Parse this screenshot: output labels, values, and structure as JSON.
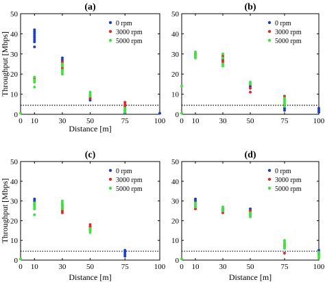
{
  "chart_data": [
    {
      "type": "scatter",
      "title": "(a)",
      "xlabel": "Distance [m]",
      "ylabel": "Throughput [Mbps]",
      "xlim": [
        0,
        100
      ],
      "ylim": [
        0,
        50
      ],
      "xticks": [
        "0",
        "10",
        "30",
        "50",
        "75",
        "100"
      ],
      "yticks": [
        "0",
        "10",
        "20",
        "30",
        "40",
        "50"
      ],
      "legend": {
        "position": "top-right",
        "entries": [
          "0 rpm",
          "3000 rpm",
          "5000 rpm"
        ]
      },
      "threshold": 4.5,
      "series": [
        {
          "name": "0 rpm",
          "color": "#1f3fbf",
          "points": [
            [
              10,
              33.5
            ],
            [
              10,
              36
            ],
            [
              10,
              37
            ],
            [
              10,
              38
            ],
            [
              10,
              39
            ],
            [
              10,
              40
            ],
            [
              10,
              41
            ],
            [
              10,
              42
            ],
            [
              30,
              26
            ],
            [
              30,
              27
            ],
            [
              30,
              28
            ],
            [
              50,
              7
            ],
            [
              50,
              8
            ],
            [
              75,
              0.5
            ],
            [
              75,
              1
            ],
            [
              75,
              2
            ],
            [
              100,
              0.5
            ]
          ]
        },
        {
          "name": "3000 rpm",
          "color": "#e02a2a",
          "points": [
            [
              10,
              17
            ],
            [
              10,
              18
            ],
            [
              30,
              22
            ],
            [
              30,
              23
            ],
            [
              30,
              24
            ],
            [
              30,
              25
            ],
            [
              30,
              26
            ],
            [
              50,
              8
            ],
            [
              50,
              9
            ],
            [
              50,
              10
            ],
            [
              75,
              2
            ],
            [
              75,
              3
            ],
            [
              75,
              4
            ],
            [
              75,
              5
            ],
            [
              75,
              6
            ]
          ]
        },
        {
          "name": "5000 rpm",
          "color": "#3fe23f",
          "points": [
            [
              0,
              0.5
            ],
            [
              10,
              13.5
            ],
            [
              10,
              16
            ],
            [
              10,
              17
            ],
            [
              10,
              18.5
            ],
            [
              30,
              20
            ],
            [
              30,
              21
            ],
            [
              30,
              22
            ],
            [
              30,
              24
            ],
            [
              30,
              25
            ],
            [
              50,
              9
            ],
            [
              50,
              10
            ],
            [
              50,
              11
            ],
            [
              75,
              1
            ],
            [
              75,
              2
            ],
            [
              75,
              3
            ]
          ]
        }
      ]
    },
    {
      "type": "scatter",
      "title": "(b)",
      "xlabel": "",
      "ylabel": "",
      "xlim": [
        0,
        100
      ],
      "ylim": [
        0,
        50
      ],
      "xticks": [
        "0",
        "10",
        "30",
        "50",
        "75",
        "100"
      ],
      "yticks": [
        "0",
        "10",
        "20",
        "30",
        "40",
        "50"
      ],
      "legend": {
        "position": "top-right",
        "entries": [
          "0 rpm",
          "3000 rpm",
          "5000 rpm"
        ]
      },
      "threshold": 4.5,
      "series": [
        {
          "name": "0 rpm",
          "color": "#1f3fbf",
          "points": [
            [
              10,
              30
            ],
            [
              30,
              27
            ],
            [
              30,
              28
            ],
            [
              50,
              13
            ],
            [
              50,
              14
            ],
            [
              75,
              2
            ],
            [
              75,
              3
            ],
            [
              100,
              1
            ],
            [
              100,
              2
            ],
            [
              100,
              3
            ]
          ]
        },
        {
          "name": "3000 rpm",
          "color": "#e02a2a",
          "points": [
            [
              10,
              29
            ],
            [
              10,
              30
            ],
            [
              30,
              26
            ],
            [
              30,
              27
            ],
            [
              30,
              29
            ],
            [
              50,
              11
            ],
            [
              50,
              13
            ],
            [
              50,
              15
            ],
            [
              75,
              8
            ],
            [
              75,
              9
            ]
          ]
        },
        {
          "name": "5000 rpm",
          "color": "#3fe23f",
          "points": [
            [
              0,
              14
            ],
            [
              0,
              0.5
            ],
            [
              10,
              28
            ],
            [
              10,
              29
            ],
            [
              10,
              30
            ],
            [
              10,
              31
            ],
            [
              30,
              24
            ],
            [
              30,
              25
            ],
            [
              30,
              28
            ],
            [
              30,
              30
            ],
            [
              50,
              15
            ],
            [
              50,
              16
            ],
            [
              75,
              4
            ],
            [
              75,
              5
            ],
            [
              75,
              6
            ],
            [
              75,
              7
            ],
            [
              75,
              8
            ]
          ]
        }
      ]
    },
    {
      "type": "scatter",
      "title": "(c)",
      "xlabel": "Distance [m]",
      "ylabel": "Throughput [Mbps]",
      "xlim": [
        0,
        100
      ],
      "ylim": [
        0,
        50
      ],
      "xticks": [
        "0",
        "10",
        "30",
        "50",
        "75",
        "100"
      ],
      "yticks": [
        "0",
        "10",
        "20",
        "30",
        "40",
        "50"
      ],
      "legend": {
        "position": "top-right",
        "entries": [
          "0 rpm",
          "3000 rpm",
          "5000 rpm"
        ]
      },
      "threshold": 4.5,
      "series": [
        {
          "name": "0 rpm",
          "color": "#1f3fbf",
          "points": [
            [
              10,
              30
            ],
            [
              10,
              31
            ],
            [
              30,
              27
            ],
            [
              30,
              28
            ],
            [
              50,
              16
            ],
            [
              50,
              17
            ],
            [
              75,
              2
            ],
            [
              75,
              3
            ],
            [
              75,
              4
            ],
            [
              75,
              5
            ]
          ]
        },
        {
          "name": "3000 rpm",
          "color": "#e02a2a",
          "points": [
            [
              10,
              28
            ],
            [
              10,
              29
            ],
            [
              30,
              24
            ],
            [
              30,
              25
            ],
            [
              30,
              26
            ],
            [
              50,
              15
            ],
            [
              50,
              17
            ],
            [
              50,
              18
            ]
          ]
        },
        {
          "name": "5000 rpm",
          "color": "#3fe23f",
          "points": [
            [
              0,
              0.5
            ],
            [
              10,
              23
            ],
            [
              10,
              26
            ],
            [
              10,
              27
            ],
            [
              10,
              28
            ],
            [
              10,
              29
            ],
            [
              30,
              26
            ],
            [
              30,
              27
            ],
            [
              30,
              28
            ],
            [
              30,
              29
            ],
            [
              30,
              30
            ],
            [
              50,
              14
            ],
            [
              50,
              15
            ],
            [
              50,
              16
            ]
          ]
        }
      ]
    },
    {
      "type": "scatter",
      "title": "(d)",
      "xlabel": "Distance [m]",
      "ylabel": "",
      "xlim": [
        0,
        100
      ],
      "ylim": [
        0,
        50
      ],
      "xticks": [
        "0",
        "10",
        "30",
        "50",
        "75",
        "100"
      ],
      "yticks": [
        "0",
        "10",
        "20",
        "30",
        "40",
        "50"
      ],
      "legend": {
        "position": "top-right",
        "entries": [
          "0 rpm",
          "3000 rpm",
          "5000 rpm"
        ]
      },
      "threshold": 4.5,
      "series": [
        {
          "name": "0 rpm",
          "color": "#1f3fbf",
          "points": [
            [
              10,
              30
            ],
            [
              10,
              31
            ],
            [
              30,
              25
            ],
            [
              30,
              26
            ],
            [
              50,
              25
            ],
            [
              50,
              26
            ],
            [
              75,
              8
            ],
            [
              100,
              3
            ],
            [
              100,
              4
            ],
            [
              100,
              5
            ]
          ]
        },
        {
          "name": "3000 rpm",
          "color": "#e02a2a",
          "points": [
            [
              10,
              26
            ],
            [
              10,
              27
            ],
            [
              30,
              24
            ],
            [
              30,
              25
            ],
            [
              50,
              23
            ],
            [
              50,
              24
            ],
            [
              50,
              25
            ],
            [
              75,
              3.5
            ],
            [
              75,
              7
            ]
          ]
        },
        {
          "name": "5000 rpm",
          "color": "#3fe23f",
          "points": [
            [
              0,
              0.5
            ],
            [
              10,
              27
            ],
            [
              10,
              28
            ],
            [
              10,
              29
            ],
            [
              30,
              25
            ],
            [
              30,
              26
            ],
            [
              30,
              27
            ],
            [
              50,
              22
            ],
            [
              50,
              23
            ],
            [
              50,
              24
            ],
            [
              75,
              6
            ],
            [
              75,
              7
            ],
            [
              75,
              8
            ],
            [
              75,
              9
            ],
            [
              75,
              10
            ],
            [
              100,
              1
            ],
            [
              100,
              2
            ],
            [
              100,
              3
            ],
            [
              100,
              4
            ]
          ]
        }
      ]
    }
  ]
}
